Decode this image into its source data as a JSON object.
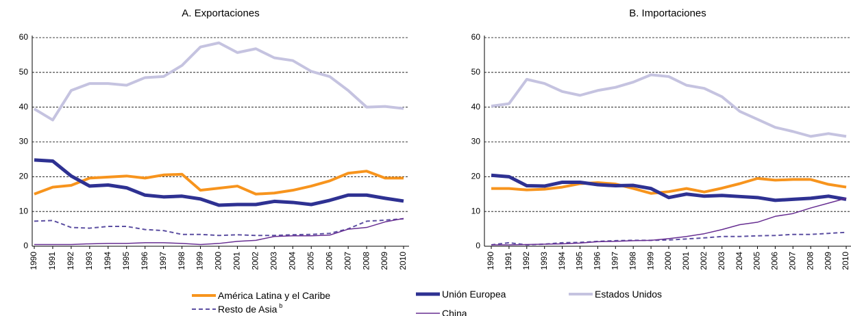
{
  "chart_data": [
    {
      "type": "line",
      "title": "A. Exportaciones",
      "categories": [
        "1990",
        "1991",
        "1992",
        "1993",
        "1994",
        "1995",
        "1996",
        "1997",
        "1998",
        "1999",
        "2000",
        "2001",
        "2002",
        "2003",
        "2004",
        "2005",
        "2006",
        "2007",
        "2008",
        "2009",
        "2010"
      ],
      "ylim": [
        0,
        60
      ],
      "yticks": [
        0,
        10,
        20,
        30,
        40,
        50,
        60
      ],
      "grid": true,
      "legend": "bottom",
      "series": [
        {
          "name": "América Latina y el Caribe",
          "color": "#f7941d",
          "values": [
            15,
            17,
            17.5,
            19.6,
            19.9,
            20.2,
            19.6,
            20.5,
            20.7,
            16.1,
            16.7,
            17.3,
            15,
            15.3,
            16.1,
            17.3,
            18.8,
            21,
            21.6,
            19.6,
            19.6
          ]
        },
        {
          "name": "Unión Europea",
          "color": "#2e3192",
          "values": [
            24.8,
            24.5,
            20.2,
            17.3,
            17.6,
            16.8,
            14.7,
            14.2,
            14.4,
            13.6,
            11.8,
            12,
            12,
            12.9,
            12.6,
            12,
            13.2,
            14.7,
            14.7,
            13.8,
            13
          ]
        },
        {
          "name": "Estados Unidos",
          "color": "#c5c3e0",
          "values": [
            39.5,
            36.3,
            44.8,
            46.8,
            46.8,
            46.3,
            48.5,
            48.8,
            52,
            57.3,
            58.5,
            55.7,
            56.8,
            54.2,
            53.4,
            50.3,
            48.8,
            44.8,
            40,
            40.2,
            39.6
          ]
        },
        {
          "name": "Resto de Asia",
          "note": "b",
          "style": "dashed",
          "color": "#5b4ea1",
          "values": [
            7.2,
            7.4,
            5.4,
            5.2,
            5.7,
            5.7,
            4.8,
            4.5,
            3.4,
            3.4,
            3.1,
            3.3,
            3.1,
            3.1,
            3.3,
            3.4,
            3.7,
            5,
            7.2,
            7.5,
            7.9
          ]
        },
        {
          "name": "China",
          "color": "#662d91",
          "values": [
            0.5,
            0.5,
            0.5,
            0.7,
            0.8,
            0.8,
            1,
            1,
            0.8,
            0.5,
            0.8,
            1.4,
            1.7,
            2.8,
            3,
            3,
            3.2,
            4.9,
            5.4,
            7,
            8
          ]
        }
      ]
    },
    {
      "type": "line",
      "title": "B. Importaciones",
      "categories": [
        "1990",
        "1991",
        "1992",
        "1993",
        "1994",
        "1995",
        "1996",
        "1997",
        "1998",
        "1999",
        "2000",
        "2001",
        "2002",
        "2003",
        "2004",
        "2005",
        "2006",
        "2007",
        "2008",
        "2009",
        "2010"
      ],
      "ylim": [
        0,
        60
      ],
      "yticks": [
        0,
        10,
        20,
        30,
        40,
        50,
        60
      ],
      "grid": true,
      "series": [
        {
          "name": "América Latina y el Caribe",
          "color": "#f7941d",
          "values": [
            16.6,
            16.6,
            16.2,
            16.4,
            17,
            18,
            18.3,
            17.9,
            16.6,
            15.2,
            15.7,
            16.6,
            15.6,
            16.7,
            18,
            19.5,
            19,
            19.2,
            19.2,
            17.8,
            17
          ]
        },
        {
          "name": "Unión Europea",
          "color": "#2e3192",
          "values": [
            20.4,
            20,
            17.4,
            17.3,
            18.4,
            18.4,
            17.7,
            17.4,
            17.5,
            16.6,
            14,
            15,
            14.4,
            14.6,
            14.3,
            14,
            13.2,
            13.5,
            13.8,
            14.4,
            13.5
          ]
        },
        {
          "name": "Estados Unidos",
          "color": "#c5c3e0",
          "values": [
            40.3,
            41,
            48,
            46.8,
            44.5,
            43.4,
            44.8,
            45.7,
            47.2,
            49.3,
            48.8,
            46.3,
            45.4,
            43,
            38.8,
            36.5,
            34.2,
            33,
            31.6,
            32.4,
            31.6
          ]
        },
        {
          "name": "Resto de Asia",
          "style": "dashed",
          "color": "#5b4ea1",
          "values": [
            0.4,
            1,
            0.4,
            0.6,
            1,
            1.1,
            1.4,
            1.6,
            1.7,
            1.7,
            1.8,
            2.1,
            2.4,
            2.8,
            2.8,
            3,
            3.1,
            3.4,
            3.4,
            3.7,
            4
          ]
        },
        {
          "name": "China",
          "color": "#662d91",
          "values": [
            0.4,
            0.4,
            0.5,
            0.6,
            0.7,
            0.9,
            1.3,
            1.4,
            1.6,
            1.7,
            2.2,
            2.8,
            3.6,
            4.8,
            6.2,
            6.9,
            8.6,
            9.4,
            11,
            12.4,
            13.8
          ]
        }
      ]
    }
  ]
}
